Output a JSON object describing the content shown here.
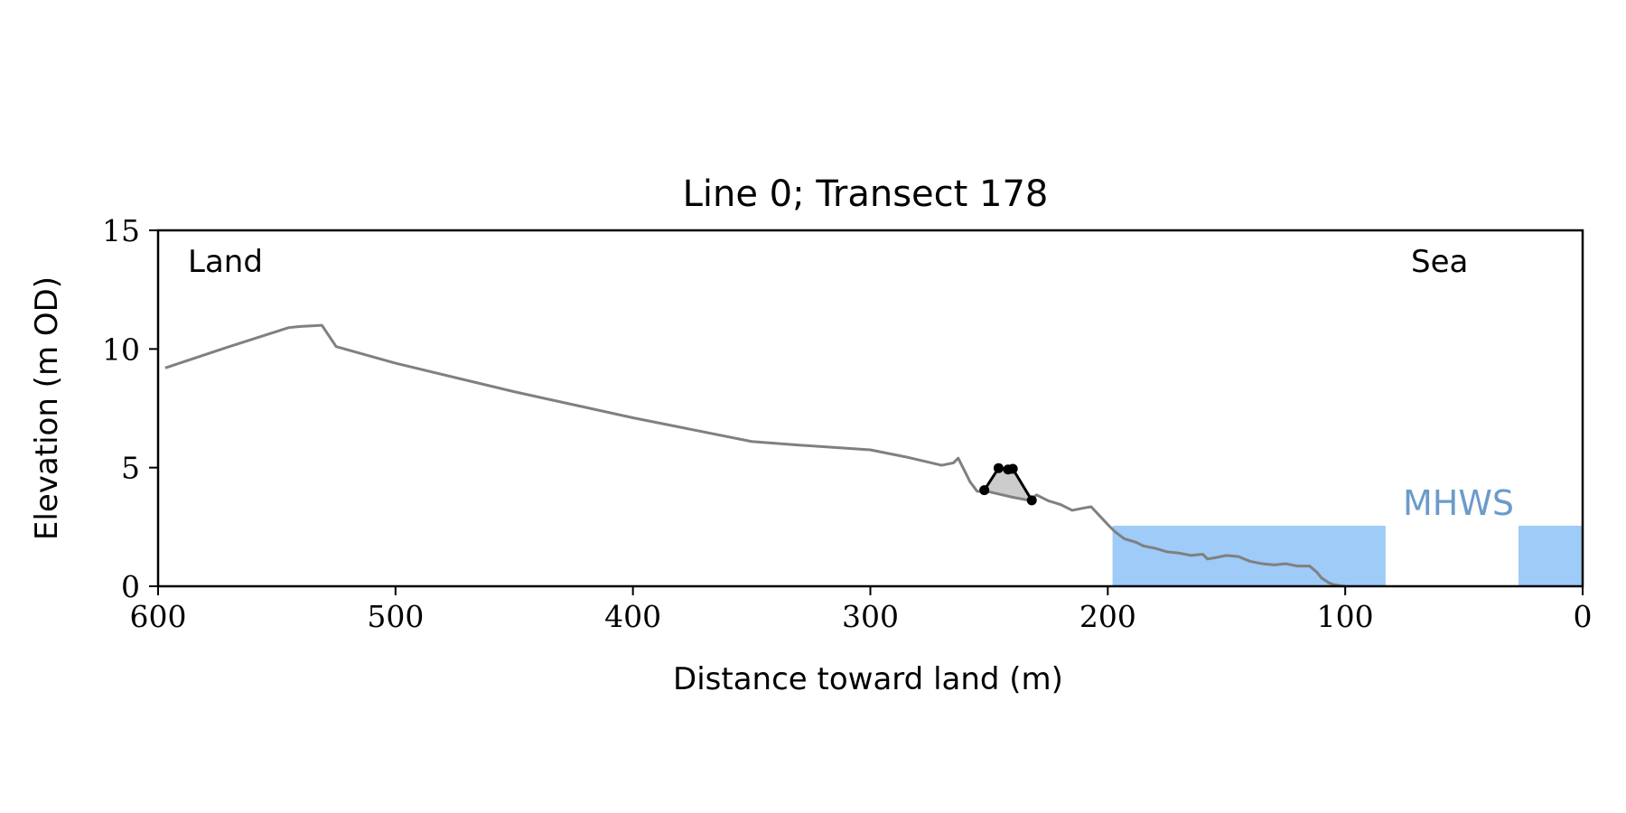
{
  "chart_data": {
    "type": "line",
    "title": "Line 0; Transect 178",
    "xlabel": "Distance toward land (m)",
    "ylabel": "Elevation (m OD)",
    "xlim": [
      600,
      0
    ],
    "ylim": [
      0,
      15
    ],
    "x_ticks": [
      600,
      500,
      400,
      300,
      200,
      100,
      0
    ],
    "y_ticks": [
      0,
      5,
      10,
      15
    ],
    "grid": false,
    "annotations": [
      {
        "text": "Land",
        "position": "top-left"
      },
      {
        "text": "Sea",
        "position": "top-right"
      }
    ],
    "mhws": {
      "label": "MHWS",
      "elevation": 2.55,
      "color": "#9ecbf7",
      "label_color": "#6c9bcb",
      "segments": [
        [
          198,
          83
        ],
        [
          27,
          0
        ]
      ]
    },
    "series": [
      {
        "type": "profile",
        "color": "#808080",
        "x": [
          597,
          570,
          545,
          540,
          531,
          529,
          526,
          525,
          500,
          450,
          400,
          350,
          330,
          300,
          285,
          270,
          265,
          263,
          261,
          258,
          255,
          250,
          240,
          233,
          230,
          225,
          220,
          215,
          210,
          207,
          200,
          197,
          193,
          188,
          185,
          180,
          175,
          170,
          165,
          160,
          158,
          155,
          150,
          145,
          140,
          135,
          130,
          125,
          120,
          115,
          112,
          110,
          107,
          105,
          102,
          100
        ],
        "y": [
          9.2,
          10.1,
          10.9,
          10.95,
          11.0,
          10.7,
          10.25,
          10.1,
          9.4,
          8.2,
          7.1,
          6.1,
          5.95,
          5.75,
          5.45,
          5.1,
          5.2,
          5.4,
          5.0,
          4.4,
          4.0,
          3.98,
          3.75,
          3.62,
          3.85,
          3.6,
          3.45,
          3.2,
          3.3,
          3.35,
          2.6,
          2.3,
          2.0,
          1.85,
          1.7,
          1.6,
          1.45,
          1.4,
          1.3,
          1.35,
          1.15,
          1.2,
          1.3,
          1.25,
          1.05,
          0.95,
          0.9,
          0.95,
          0.85,
          0.85,
          0.6,
          0.35,
          0.15,
          0.07,
          0.02,
          0.0
        ]
      },
      {
        "type": "dune",
        "color": "#000000",
        "fill": "#cccccc",
        "x": [
          252,
          246,
          242,
          240,
          232
        ],
        "y": [
          4.05,
          4.98,
          4.92,
          4.95,
          3.62
        ]
      }
    ]
  }
}
